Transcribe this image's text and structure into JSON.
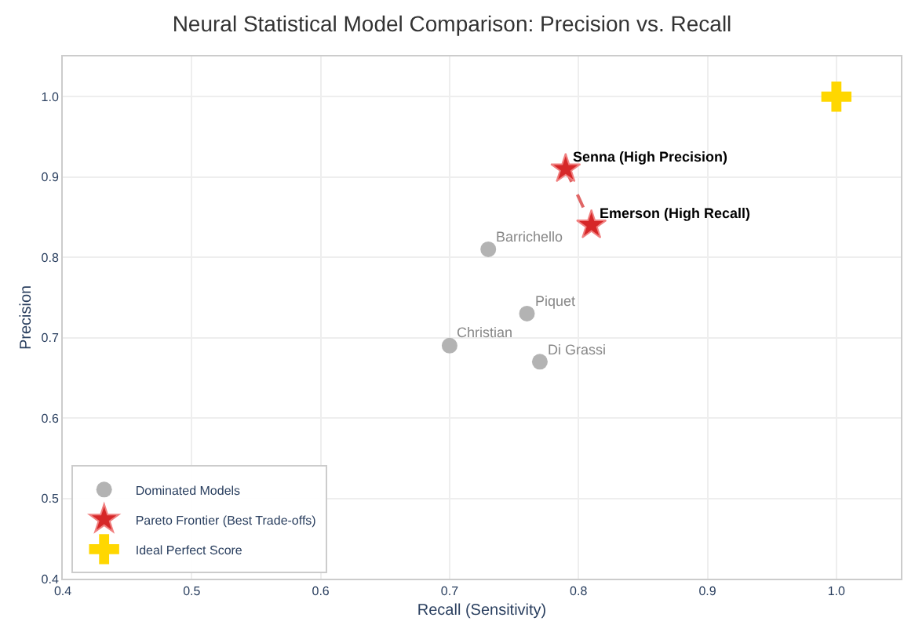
{
  "chart_data": {
    "type": "scatter",
    "title": "Neural Statistical Model Comparison: Precision vs. Recall",
    "xlabel": "Recall (Sensitivity)",
    "ylabel": "Precision",
    "xlim": [
      0.4,
      1.05
    ],
    "ylim": [
      0.4,
      1.05
    ],
    "xticks": [
      0.4,
      0.5,
      0.6,
      0.7,
      0.8,
      0.9,
      {
        "value": 1.0,
        "label": "1.0"
      }
    ],
    "yticks": [
      0.4,
      0.5,
      0.6,
      0.7,
      0.8,
      0.9,
      {
        "value": 1.0,
        "label": "1.0"
      }
    ],
    "grid": true,
    "legend": "bottom left",
    "series": [
      {
        "name": "Dominated Models",
        "color": "#b3b3b3",
        "marker": "circle",
        "x": [
          0.73,
          0.76,
          0.7,
          0.77
        ],
        "values": [
          0.81,
          0.73,
          0.69,
          0.67
        ]
      },
      {
        "type": "line",
        "color": "#e06666",
        "line_style": "dashed",
        "marker": "none",
        "x": [
          0.79,
          0.81
        ],
        "values": [
          0.91,
          0.84
        ]
      },
      {
        "name": "Pareto Frontier (Best Trade-offs)",
        "color": "#d62728",
        "marker": "star",
        "x": [
          0.79,
          0.81
        ],
        "values": [
          0.91,
          0.84
        ]
      },
      {
        "name": "Ideal Perfect Score",
        "color": "#ffd700",
        "marker": "cross",
        "x": [
          1.0
        ],
        "values": [
          1.0
        ]
      }
    ],
    "annotations": [
      {
        "text": "Barrichello",
        "x": 0.73,
        "y": 0.81
      },
      {
        "text": "Piquet",
        "x": 0.76,
        "y": 0.73
      },
      {
        "text": "Christian",
        "x": 0.7,
        "y": 0.69
      },
      {
        "text": "Di Grassi",
        "x": 0.77,
        "y": 0.67
      },
      {
        "text": "Senna (High Precision)",
        "x": 0.79,
        "y": 0.91
      },
      {
        "text": "Emerson (High Recall)",
        "x": 0.81,
        "y": 0.84
      }
    ]
  }
}
